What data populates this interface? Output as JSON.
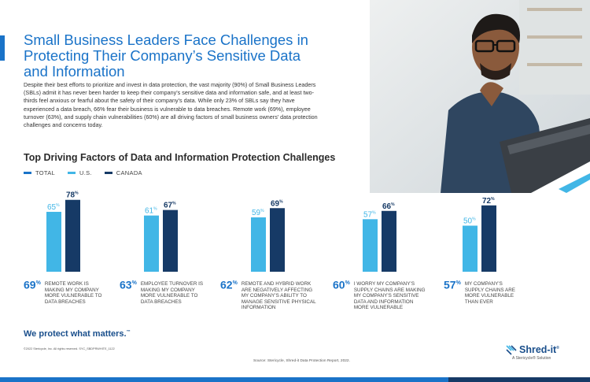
{
  "header": {
    "title": "Small Business Leaders Face Challenges in Protecting Their Company’s Sensitive Data and Information",
    "intro": "Despite their best efforts to prioritize and invest in data protection, the vast majority (90%) of Small Business Leaders (SBLs) admit it has never been harder to keep their company’s sensitive data and information safe, and at least two-thirds feel anxious or fearful about the safety of their company’s data. While only 23% of SBLs say they have experienced a data breach, 66% fear their business is vulnerable to data breaches. Remote work (69%), employee turnover (63%), and supply chain vulnerabilities (60%) are all driving factors of small business owners’ data protection challenges and concerns today."
  },
  "colors": {
    "accent": "#1a73c8",
    "us": "#41b6e6",
    "canada": "#163a66",
    "total": "#1a73c8"
  },
  "chart_data": {
    "type": "bar",
    "title": "Top Driving Factors of Data and Information Protection Challenges",
    "legend": [
      "TOTAL",
      "U.S.",
      "CANADA"
    ],
    "categories": [
      "REMOTE WORK IS MAKING MY COMPANY MORE VULNERABLE TO DATA BREACHES",
      "EMPLOYEE TURNOVER IS MAKING MY COMPANY MORE VULNERABLE TO DATA BREACHES",
      "REMOTE AND HYBRID WORK ARE NEGATIVELY AFFECTING MY COMPANY’S ABILITY TO MANAGE SENSITIVE PHYSICAL INFORMATION",
      "I WORRY MY COMPANY’S SUPPLY CHAINS ARE MAKING MY COMPANY’S SENSITIVE DATA AND INFORMATION MORE VULNERABLE",
      "MY COMPANY’S SUPPLY CHAINS ARE MORE VULNERABLE THAN EVER"
    ],
    "totals": [
      69,
      63,
      62,
      60,
      57
    ],
    "series": [
      {
        "name": "U.S.",
        "values": [
          65,
          61,
          59,
          57,
          50
        ]
      },
      {
        "name": "CANADA",
        "values": [
          78,
          67,
          69,
          66,
          72
        ]
      }
    ],
    "ylim": [
      0,
      100
    ],
    "unit": "%"
  },
  "footer": {
    "tagline": "We protect what matters.",
    "tagline_mark": "™",
    "copyright": "©2022 Stericycle, Inc. All rights reserved.    SYC_SBDPRWHITE_1122",
    "source": "Source: Stericycle, Shred-it Data Protection Report, 2022.",
    "logo_word": "Shred-it",
    "logo_mark": "®",
    "logo_sub": "A Stericycle® Solution"
  }
}
